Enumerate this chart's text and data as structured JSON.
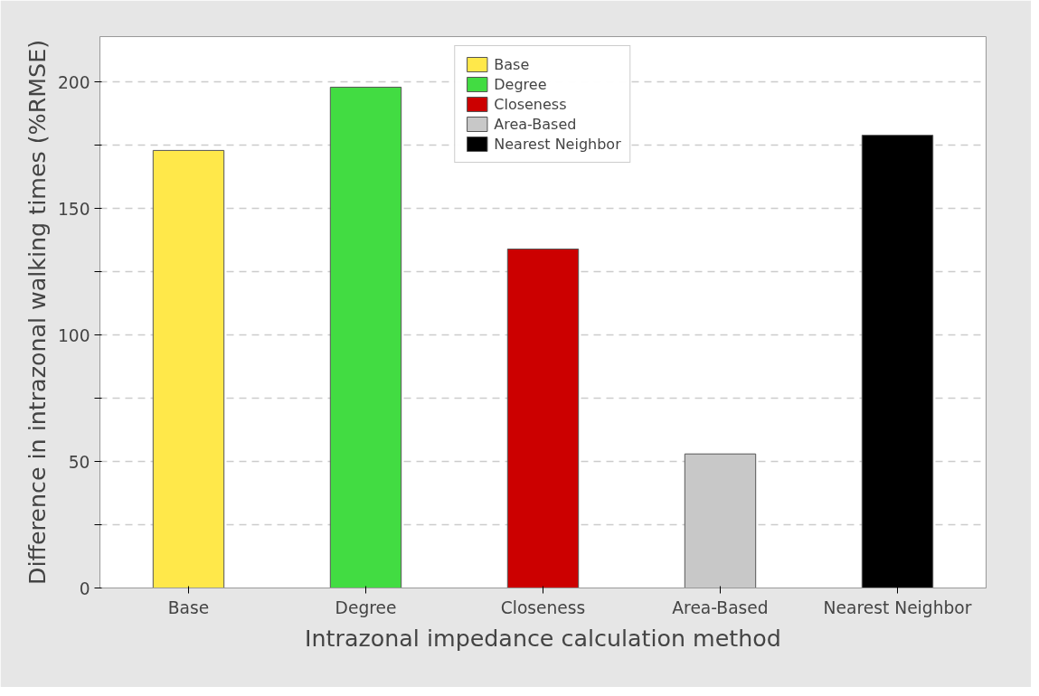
{
  "chart_data": {
    "type": "bar",
    "xlabel": "Intrazonal impedance calculation method",
    "ylabel": "Difference in intrazonal walking times (%RMSE)",
    "categories": [
      "Base",
      "Degree",
      "Closeness",
      "Area-Based",
      "Nearest Neighbor"
    ],
    "series": [
      {
        "name": "Base",
        "color": "#ffe84a",
        "values": [
          173,
          null,
          null,
          null,
          null
        ]
      },
      {
        "name": "Degree",
        "color": "#42dc42",
        "values": [
          null,
          198,
          null,
          null,
          null
        ]
      },
      {
        "name": "Closeness",
        "color": "#cc0000",
        "values": [
          null,
          null,
          134,
          null,
          null
        ]
      },
      {
        "name": "Area-Based",
        "color": "#c8c8c8",
        "values": [
          null,
          null,
          null,
          53,
          null
        ]
      },
      {
        "name": "Nearest Neighbor",
        "color": "#000000",
        "values": [
          null,
          null,
          null,
          null,
          179
        ]
      }
    ],
    "ylim": [
      0,
      218
    ],
    "yticks": [
      0,
      {
        "value": 25,
        "label": null
      },
      50,
      {
        "value": 75,
        "label": null
      },
      100,
      {
        "value": 125,
        "label": null
      },
      150,
      {
        "value": 175,
        "label": null
      },
      200
    ],
    "grid": "y",
    "legend": "top"
  }
}
